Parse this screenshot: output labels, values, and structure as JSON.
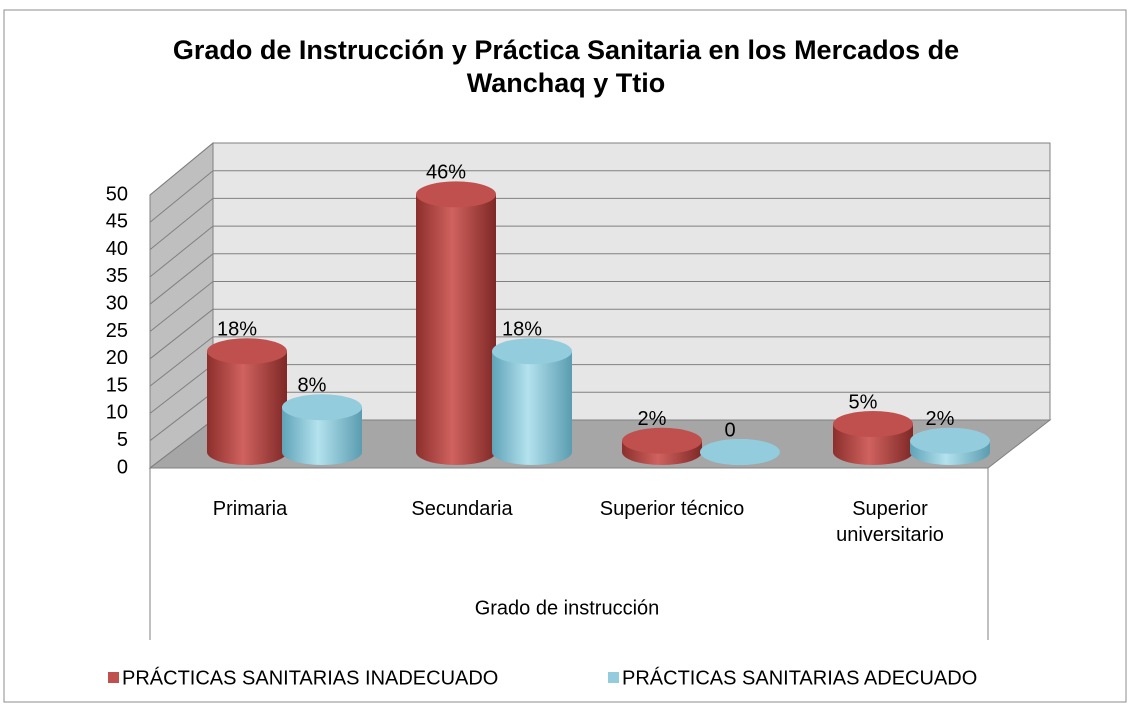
{
  "chart_data": {
    "type": "bar",
    "title": "Grado de Instrucción y Práctica Sanitaria en los Mercados de Wanchaq y Ttio",
    "x_label": "Grado de instrucción",
    "categories": [
      "Primaria",
      "Secundaria",
      "Superior técnico",
      "Superior universitario"
    ],
    "series": [
      {
        "name": "PRÁCTICAS SANITARIAS INADECUADO",
        "color": "#c0504d",
        "values": [
          18,
          46,
          2,
          5
        ],
        "value_labels": [
          "18%",
          "46%",
          "2%",
          "5%"
        ]
      },
      {
        "name": "PRÁCTICAS SANITARIAS ADECUADO",
        "color": "#93cddd",
        "values": [
          8,
          18,
          0,
          2
        ],
        "value_labels": [
          "8%",
          "18%",
          "0",
          "2%"
        ]
      }
    ],
    "ylim": [
      0,
      50
    ],
    "yticks": [
      0,
      5,
      10,
      15,
      20,
      25,
      30,
      35,
      40,
      45,
      50
    ],
    "grid": true,
    "legend": "bottom"
  }
}
